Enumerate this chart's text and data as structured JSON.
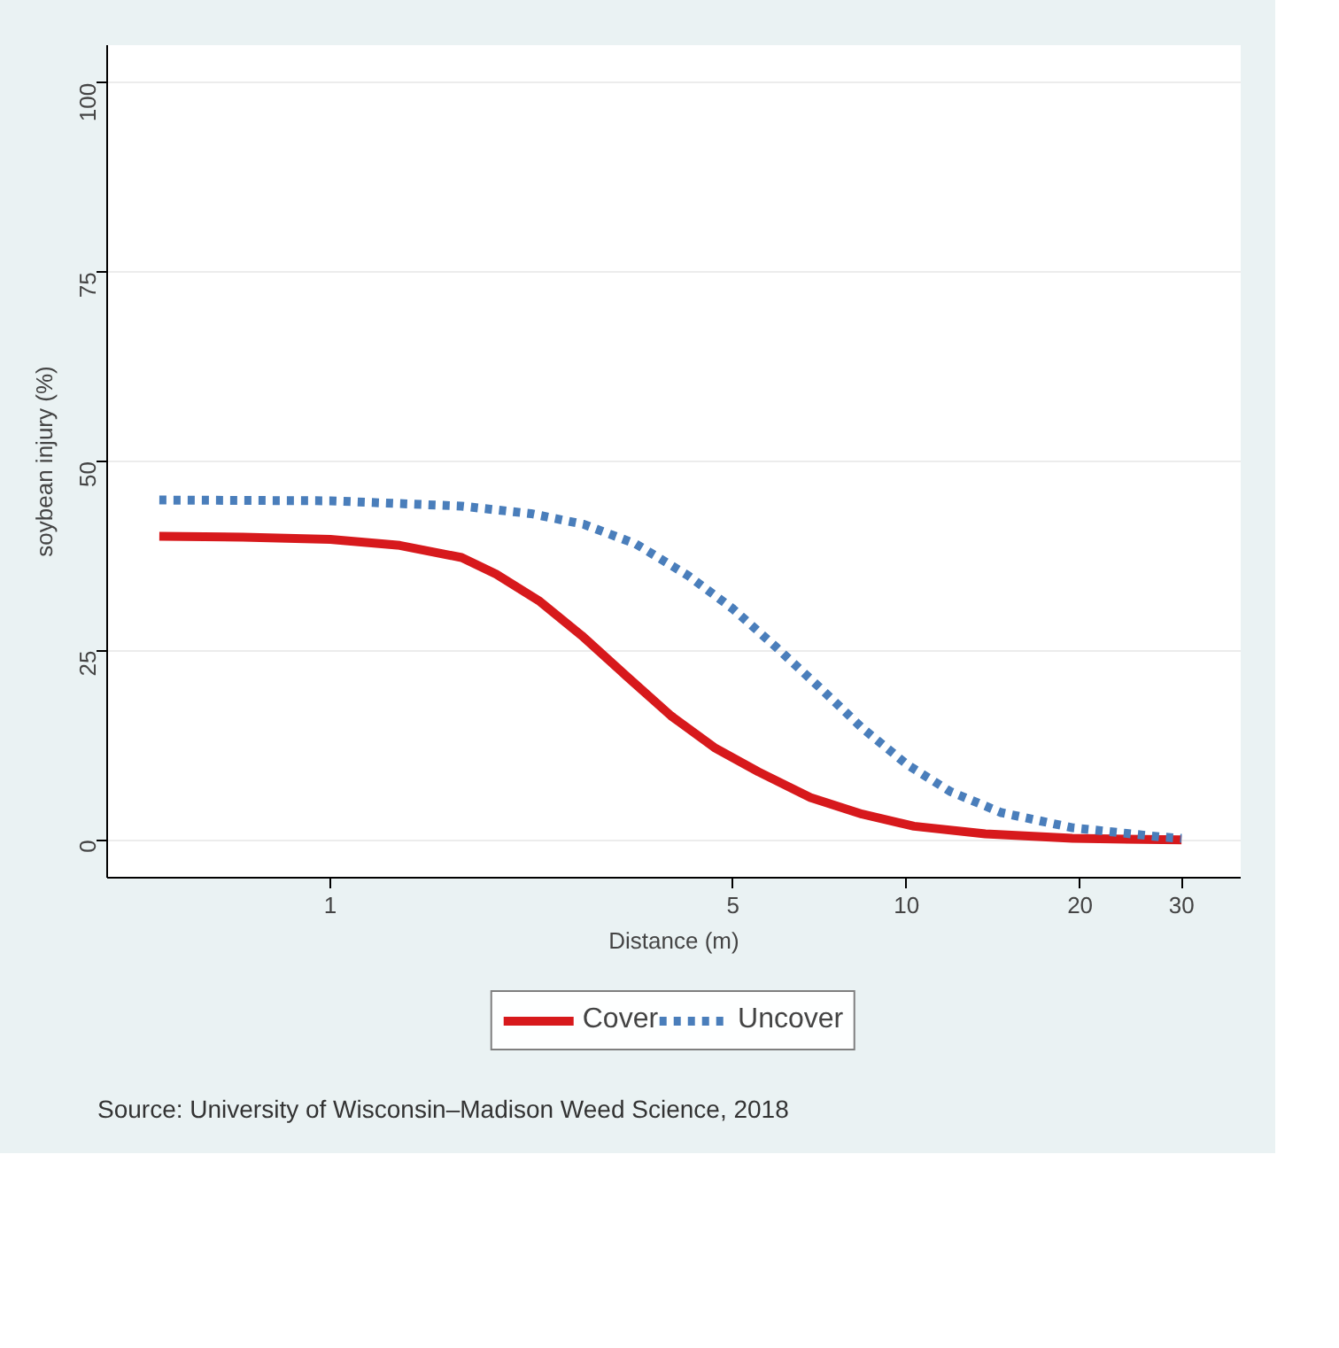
{
  "chart_data": {
    "type": "line",
    "xlabel": "Distance (m)",
    "ylabel": "soybean injury (%)",
    "log": "x",
    "xlim": [
      0.41,
      38
    ],
    "xticks": [
      1,
      5,
      10,
      20,
      30
    ],
    "ylim": [
      -5,
      105
    ],
    "yticks": [
      0,
      25,
      50,
      75,
      100
    ],
    "grid": "y",
    "legend": "bottom",
    "marker": "none",
    "series": [
      {
        "name": "Cover",
        "color": "#d7191c",
        "line_style": "solid",
        "x": [
          0.505,
          0.705,
          1,
          1.32,
          1.69,
          1.94,
          2.31,
          2.73,
          3.27,
          3.9,
          4.64,
          5.53,
          6.81,
          8.37,
          10.3,
          13.7,
          19.4,
          30
        ],
        "values": [
          40.1,
          40,
          39.7,
          38.9,
          37.3,
          35.1,
          31.5,
          27,
          21.6,
          16.4,
          12.2,
          9,
          5.6,
          3.4,
          1.8,
          0.8,
          0.2,
          0
        ]
      },
      {
        "name": "Uncover",
        "color": "#4a7ebb",
        "line_style": "dashed",
        "x": [
          0.505,
          1,
          1.69,
          2.23,
          2.75,
          3.39,
          4.18,
          5,
          5.93,
          7.05,
          8.37,
          10,
          11.9,
          14.6,
          19.4,
          27.5,
          30
        ],
        "values": [
          44.9,
          44.8,
          44.1,
          43.1,
          41.7,
          39.1,
          34.9,
          30.5,
          25.5,
          20.2,
          14.8,
          10,
          6.4,
          3.6,
          1.6,
          0.4,
          0.2
        ]
      }
    ],
    "annotations": [
      "Source: University of Wisconsin–Madison Weed Science, 2018"
    ]
  }
}
